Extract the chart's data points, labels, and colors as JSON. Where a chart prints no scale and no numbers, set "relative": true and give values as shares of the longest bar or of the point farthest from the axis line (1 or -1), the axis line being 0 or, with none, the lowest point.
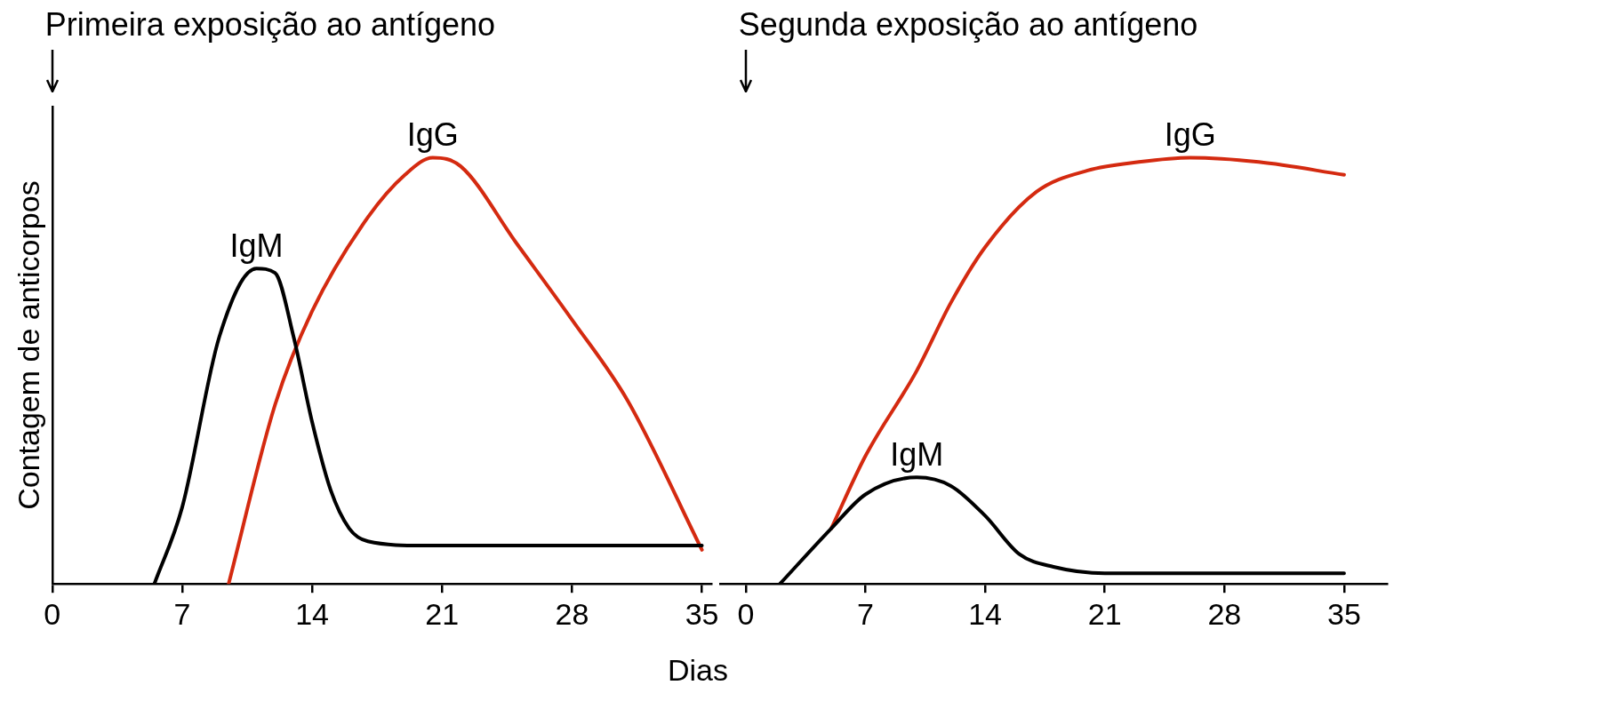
{
  "chart_data": [
    {
      "type": "line",
      "relative": true,
      "ylabel": "Contagem de anticorpos",
      "xlim": [
        0,
        35.5
      ],
      "xticks": [
        0,
        7,
        14,
        21,
        28,
        35
      ],
      "tick_labels": "x",
      "grid": false,
      "legend": false,
      "marker": "none",
      "line_style": "solid",
      "annotations": [
        "Primeira exposição ao antígeno"
      ],
      "series": [
        {
          "name": "IgM",
          "color": "#000000",
          "x": [
            5.5,
            7,
            9,
            11,
            12,
            13,
            14,
            15,
            16,
            17,
            20,
            25,
            30,
            35
          ],
          "values": [
            0,
            0.18,
            0.58,
            0.74,
            0.73,
            0.58,
            0.38,
            0.22,
            0.13,
            0.1,
            0.09,
            0.09,
            0.09,
            0.09
          ]
        },
        {
          "name": "IgG",
          "color": "#d42a10",
          "x": [
            9.5,
            12,
            14,
            17,
            19,
            20.5,
            22,
            25,
            28,
            31,
            35
          ],
          "values": [
            0,
            0.42,
            0.64,
            0.86,
            0.96,
            1,
            0.98,
            0.8,
            0.62,
            0.43,
            0.08
          ]
        }
      ]
    },
    {
      "type": "line",
      "relative": true,
      "xlabel": "Dias",
      "xlim": [
        -1.5,
        37.5
      ],
      "xticks": [
        0,
        7,
        14,
        21,
        28,
        35
      ],
      "tick_labels": "x",
      "grid": false,
      "legend": false,
      "marker": "none",
      "line_style": "solid",
      "annotations": [
        "Segunda exposição ao antígeno"
      ],
      "series": [
        {
          "name": "IgM",
          "color": "#000000",
          "x": [
            2,
            5,
            7,
            10,
            12,
            14,
            16,
            18,
            21,
            28,
            35
          ],
          "values": [
            0,
            0.13,
            0.21,
            0.25,
            0.23,
            0.16,
            0.07,
            0.04,
            0.025,
            0.025,
            0.025
          ]
        },
        {
          "name": "IgG",
          "color": "#d42a10",
          "x": [
            5,
            7,
            10,
            12,
            14,
            17,
            20,
            23,
            26,
            30,
            35
          ],
          "values": [
            0.13,
            0.3,
            0.5,
            0.66,
            0.79,
            0.92,
            0.97,
            0.99,
            1,
            0.99,
            0.96
          ]
        }
      ]
    }
  ]
}
